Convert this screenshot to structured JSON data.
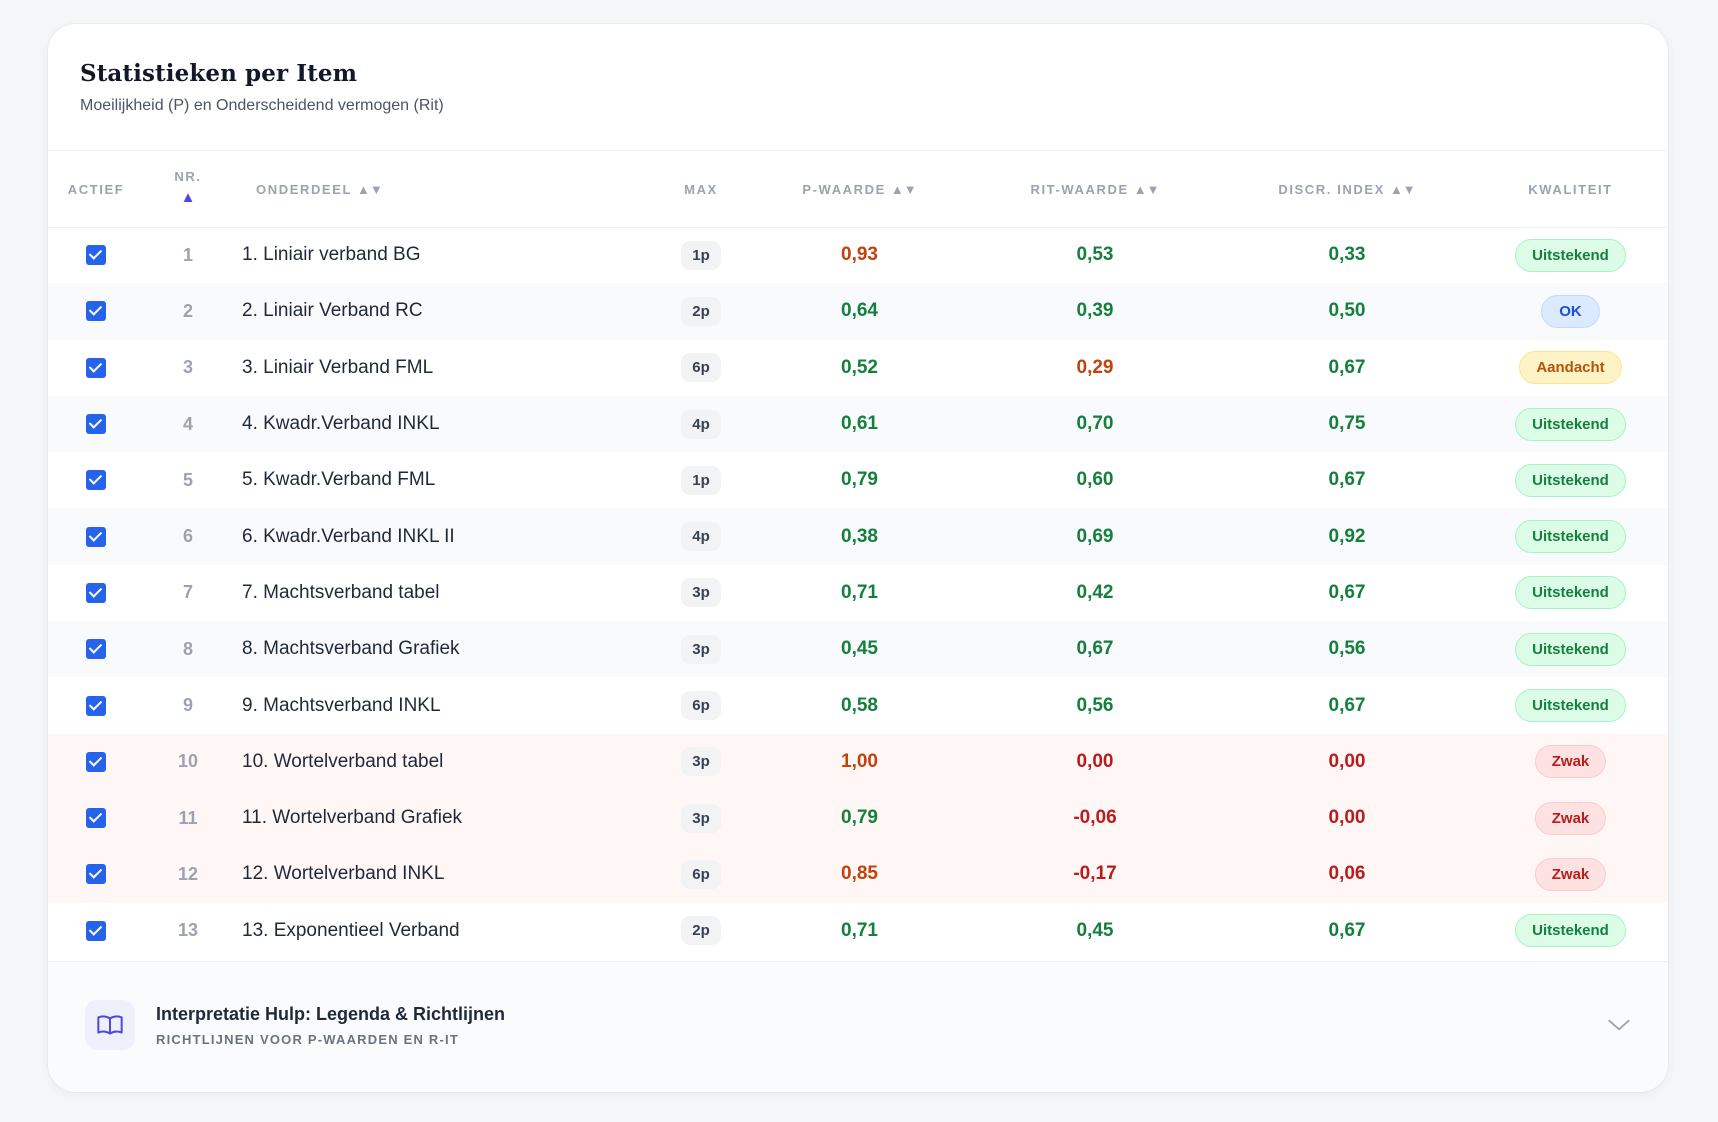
{
  "header": {
    "title": "Statistieken per Item",
    "subtitle": "Moeilijkheid (P) en Onderscheidend vermogen (Rit)"
  },
  "columns": {
    "actief": "ACTIEF",
    "nr": "NR.",
    "onderdeel": "ONDERDEEL",
    "max": "MAX",
    "p_waarde": "P-WAARDE",
    "rit_waarde": "RIT-WAARDE",
    "discr_index": "DISCR. INDEX",
    "kwaliteit": "KWALITEIT"
  },
  "sort_icons": {
    "nr": "triangle-up-icon",
    "onderdeel": "sort-up-down-icon",
    "p_waarde": "sort-up-down-icon",
    "rit_waarde": "sort-up-down-icon",
    "discr_index": "sort-up-down-icon"
  },
  "colors": {
    "good": "#15803d",
    "attention": "#c2410c",
    "bad": "#b91c1c",
    "checkbox": "#2563eb",
    "active_sort": "#4f46e5"
  },
  "rows": [
    {
      "active": true,
      "nr": "1",
      "name": "1. Liniair verband BG",
      "max": "1p",
      "p": "0,93",
      "p_tone": "orange",
      "rit": "0,53",
      "rit_tone": "green",
      "disc": "0,33",
      "disc_tone": "green",
      "quality": "Uitstekend",
      "quality_tone": "good"
    },
    {
      "active": true,
      "nr": "2",
      "name": "2. Liniair Verband RC",
      "max": "2p",
      "p": "0,64",
      "p_tone": "green",
      "rit": "0,39",
      "rit_tone": "green",
      "disc": "0,50",
      "disc_tone": "green",
      "quality": "OK",
      "quality_tone": "ok"
    },
    {
      "active": true,
      "nr": "3",
      "name": "3. Liniair Verband FML",
      "max": "6p",
      "p": "0,52",
      "p_tone": "green",
      "rit": "0,29",
      "rit_tone": "orange",
      "disc": "0,67",
      "disc_tone": "green",
      "quality": "Aandacht",
      "quality_tone": "warn"
    },
    {
      "active": true,
      "nr": "4",
      "name": "4. Kwadr.Verband INKL",
      "max": "4p",
      "p": "0,61",
      "p_tone": "green",
      "rit": "0,70",
      "rit_tone": "green",
      "disc": "0,75",
      "disc_tone": "green",
      "quality": "Uitstekend",
      "quality_tone": "good"
    },
    {
      "active": true,
      "nr": "5",
      "name": "5. Kwadr.Verband FML",
      "max": "1p",
      "p": "0,79",
      "p_tone": "green",
      "rit": "0,60",
      "rit_tone": "green",
      "disc": "0,67",
      "disc_tone": "green",
      "quality": "Uitstekend",
      "quality_tone": "good"
    },
    {
      "active": true,
      "nr": "6",
      "name": "6. Kwadr.Verband INKL II",
      "max": "4p",
      "p": "0,38",
      "p_tone": "green",
      "rit": "0,69",
      "rit_tone": "green",
      "disc": "0,92",
      "disc_tone": "green",
      "quality": "Uitstekend",
      "quality_tone": "good"
    },
    {
      "active": true,
      "nr": "7",
      "name": "7. Machtsverband tabel",
      "max": "3p",
      "p": "0,71",
      "p_tone": "green",
      "rit": "0,42",
      "rit_tone": "green",
      "disc": "0,67",
      "disc_tone": "green",
      "quality": "Uitstekend",
      "quality_tone": "good"
    },
    {
      "active": true,
      "nr": "8",
      "name": "8. Machtsverband Grafiek",
      "max": "3p",
      "p": "0,45",
      "p_tone": "green",
      "rit": "0,67",
      "rit_tone": "green",
      "disc": "0,56",
      "disc_tone": "green",
      "quality": "Uitstekend",
      "quality_tone": "good"
    },
    {
      "active": true,
      "nr": "9",
      "name": "9. Machtsverband INKL",
      "max": "6p",
      "p": "0,58",
      "p_tone": "green",
      "rit": "0,56",
      "rit_tone": "green",
      "disc": "0,67",
      "disc_tone": "green",
      "quality": "Uitstekend",
      "quality_tone": "good"
    },
    {
      "active": true,
      "nr": "10",
      "name": "10. Wortelverband tabel",
      "max": "3p",
      "p": "1,00",
      "p_tone": "orange",
      "rit": "0,00",
      "rit_tone": "red",
      "disc": "0,00",
      "disc_tone": "red",
      "quality": "Zwak",
      "quality_tone": "weak"
    },
    {
      "active": true,
      "nr": "11",
      "name": "11. Wortelverband Grafiek",
      "max": "3p",
      "p": "0,79",
      "p_tone": "green",
      "rit": "-0,06",
      "rit_tone": "red",
      "disc": "0,00",
      "disc_tone": "red",
      "quality": "Zwak",
      "quality_tone": "weak"
    },
    {
      "active": true,
      "nr": "12",
      "name": "12. Wortelverband INKL",
      "max": "6p",
      "p": "0,85",
      "p_tone": "orange",
      "rit": "-0,17",
      "rit_tone": "red",
      "disc": "0,06",
      "disc_tone": "red",
      "quality": "Zwak",
      "quality_tone": "weak"
    },
    {
      "active": true,
      "nr": "13",
      "name": "13. Exponentieel Verband",
      "max": "2p",
      "p": "0,71",
      "p_tone": "green",
      "rit": "0,45",
      "rit_tone": "green",
      "disc": "0,67",
      "disc_tone": "green",
      "quality": "Uitstekend",
      "quality_tone": "good"
    }
  ],
  "legend": {
    "icon": "book-open-icon",
    "title": "Interpretatie Hulp: Legenda & Richtlijnen",
    "subtitle": "RICHTLIJNEN VOOR P-WAARDEN EN R-IT",
    "toggle_icon": "chevron-down-icon"
  }
}
